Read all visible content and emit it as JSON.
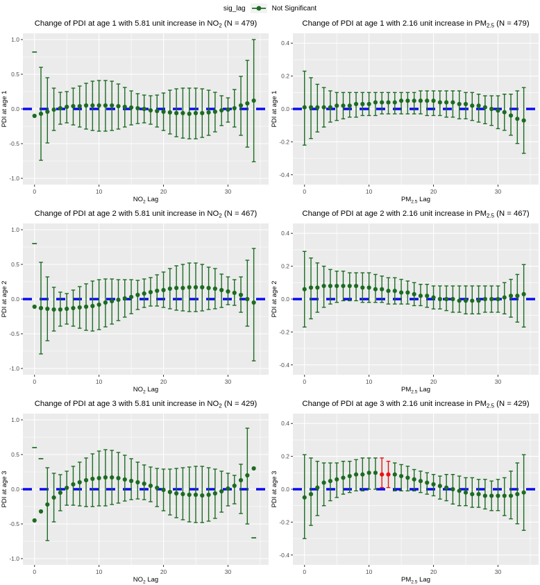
{
  "legend": {
    "title": "sig_lag",
    "items": [
      {
        "label": "Not Significant",
        "color": "#1B6B21"
      }
    ]
  },
  "colors": {
    "not_significant": "#1B6B21",
    "significant": "#ED1111",
    "zero_line": "#0A0AF0",
    "panel_bg": "#EBEBEB",
    "grid_line": "#FFFFFF",
    "axis_text": "#4D4D4D",
    "tick_mark": "#333333",
    "title_text": "#000000"
  },
  "chart_data": [
    {
      "type": "scatter",
      "error_bars": true,
      "title_parts": [
        {
          "t": "Change of PDI at age 1 with 5.81 unit increase in NO"
        },
        {
          "t": "2",
          "sub": true
        },
        {
          "t": " (N = 479)"
        }
      ],
      "xlabel_parts": [
        {
          "t": "NO"
        },
        {
          "t": "2",
          "sub": true
        },
        {
          "t": " Lag"
        }
      ],
      "ylabel": "PDI at age 1",
      "n": 479,
      "xlim": [
        -1.8,
        36.3
      ],
      "ylim": [
        -1.09,
        1.09
      ],
      "xticks": [
        0,
        10,
        20,
        30
      ],
      "yticks": [
        -1.0,
        -0.5,
        0.0,
        0.5,
        1.0
      ],
      "x": [
        0,
        1,
        2,
        3,
        4,
        5,
        6,
        7,
        8,
        9,
        10,
        11,
        12,
        13,
        14,
        15,
        16,
        17,
        18,
        19,
        20,
        21,
        22,
        23,
        24,
        25,
        26,
        27,
        28,
        29,
        30,
        31,
        32,
        33,
        34
      ],
      "est": [
        -0.1,
        -0.07,
        -0.04,
        -0.01,
        0.01,
        0.03,
        0.04,
        0.04,
        0.05,
        0.05,
        0.05,
        0.05,
        0.05,
        0.04,
        0.03,
        0.02,
        0.01,
        0.0,
        -0.02,
        -0.03,
        -0.04,
        -0.05,
        -0.06,
        -0.06,
        -0.07,
        -0.06,
        -0.06,
        -0.05,
        -0.04,
        -0.02,
        -0.01,
        0.01,
        0.05,
        0.08,
        0.12
      ],
      "hi": [
        null,
        0.6,
        0.45,
        0.3,
        0.24,
        0.25,
        0.3,
        0.33,
        0.37,
        0.4,
        0.41,
        0.41,
        0.4,
        0.36,
        0.31,
        0.26,
        0.22,
        0.2,
        0.19,
        0.2,
        0.23,
        0.27,
        0.29,
        0.3,
        0.3,
        0.3,
        0.29,
        0.27,
        0.24,
        0.19,
        0.16,
        0.28,
        0.47,
        0.7,
        1.0
      ],
      "lo": [
        null,
        -0.74,
        -0.49,
        -0.31,
        -0.22,
        -0.2,
        -0.23,
        -0.26,
        -0.29,
        -0.31,
        -0.32,
        -0.32,
        -0.31,
        -0.29,
        -0.26,
        -0.23,
        -0.21,
        -0.2,
        -0.22,
        -0.26,
        -0.31,
        -0.36,
        -0.4,
        -0.42,
        -0.43,
        -0.43,
        -0.41,
        -0.38,
        -0.33,
        -0.24,
        -0.19,
        -0.26,
        -0.38,
        -0.55,
        -0.76
      ],
      "caps": [
        {
          "x": 0,
          "y": 0.82
        }
      ],
      "sig_lags": []
    },
    {
      "type": "scatter",
      "error_bars": true,
      "title_parts": [
        {
          "t": "Change of PDI at age 1 with 2.16 unit increase in PM"
        },
        {
          "t": "2.5",
          "sub": true
        },
        {
          "t": " (N = 479)"
        }
      ],
      "xlabel_parts": [
        {
          "t": "PM"
        },
        {
          "t": "2.5",
          "sub": true
        },
        {
          "t": " Lag"
        }
      ],
      "ylabel": "PDI at age 1",
      "n": 479,
      "xlim": [
        -1.8,
        36.3
      ],
      "ylim": [
        -0.46,
        0.46
      ],
      "xticks": [
        0,
        10,
        20,
        30
      ],
      "yticks": [
        -0.4,
        -0.2,
        0.0,
        0.2,
        0.4
      ],
      "x": [
        0,
        1,
        2,
        3,
        4,
        5,
        6,
        7,
        8,
        9,
        10,
        11,
        12,
        13,
        14,
        15,
        16,
        17,
        18,
        19,
        20,
        21,
        22,
        23,
        24,
        25,
        26,
        27,
        28,
        29,
        30,
        31,
        32,
        33,
        34
      ],
      "est": [
        0.01,
        0.01,
        0.01,
        0.01,
        0.01,
        0.02,
        0.02,
        0.02,
        0.03,
        0.03,
        0.03,
        0.04,
        0.04,
        0.04,
        0.04,
        0.05,
        0.05,
        0.05,
        0.05,
        0.05,
        0.05,
        0.04,
        0.04,
        0.04,
        0.03,
        0.03,
        0.02,
        0.02,
        0.01,
        0.0,
        -0.01,
        -0.02,
        -0.04,
        -0.06,
        -0.07
      ],
      "hi": [
        0.23,
        0.19,
        0.15,
        0.13,
        0.11,
        0.1,
        0.1,
        0.1,
        0.1,
        0.1,
        0.1,
        0.1,
        0.1,
        0.1,
        0.1,
        0.1,
        0.1,
        0.1,
        0.11,
        0.11,
        0.11,
        0.11,
        0.11,
        0.11,
        0.11,
        0.1,
        0.1,
        0.09,
        0.08,
        0.08,
        0.08,
        0.09,
        0.09,
        0.11,
        0.13
      ],
      "lo": [
        -0.22,
        -0.18,
        -0.14,
        -0.11,
        -0.08,
        -0.07,
        -0.06,
        -0.05,
        -0.05,
        -0.04,
        -0.04,
        -0.04,
        -0.03,
        -0.03,
        -0.03,
        -0.03,
        -0.03,
        -0.03,
        -0.03,
        -0.04,
        -0.04,
        -0.04,
        -0.05,
        -0.05,
        -0.06,
        -0.06,
        -0.07,
        -0.08,
        -0.09,
        -0.1,
        -0.12,
        -0.13,
        -0.16,
        -0.21,
        -0.27
      ],
      "caps": [],
      "sig_lags": []
    },
    {
      "type": "scatter",
      "error_bars": true,
      "title_parts": [
        {
          "t": "Change of PDI at age 2 with 5.81 unit increase in NO"
        },
        {
          "t": "2",
          "sub": true
        },
        {
          "t": " (N = 467)"
        }
      ],
      "xlabel_parts": [
        {
          "t": "NO"
        },
        {
          "t": "2",
          "sub": true
        },
        {
          "t": " Lag"
        }
      ],
      "ylabel": "PDI at age 2",
      "n": 467,
      "xlim": [
        -1.8,
        36.3
      ],
      "ylim": [
        -1.09,
        1.09
      ],
      "xticks": [
        0,
        10,
        20,
        30
      ],
      "yticks": [
        -1.0,
        -0.5,
        0.0,
        0.5,
        1.0
      ],
      "x": [
        0,
        1,
        2,
        3,
        4,
        5,
        6,
        7,
        8,
        9,
        10,
        11,
        12,
        13,
        14,
        15,
        16,
        17,
        18,
        19,
        20,
        21,
        22,
        23,
        24,
        25,
        26,
        27,
        28,
        29,
        30,
        31,
        32,
        33,
        34
      ],
      "est": [
        -0.11,
        -0.13,
        -0.14,
        -0.15,
        -0.15,
        -0.14,
        -0.13,
        -0.12,
        -0.11,
        -0.1,
        -0.08,
        -0.05,
        -0.03,
        -0.01,
        0.01,
        0.03,
        0.06,
        0.08,
        0.1,
        0.12,
        0.13,
        0.15,
        0.16,
        0.16,
        0.17,
        0.17,
        0.17,
        0.16,
        0.15,
        0.13,
        0.11,
        0.09,
        0.06,
        0.0,
        -0.05
      ],
      "hi": [
        null,
        0.53,
        0.32,
        0.17,
        0.1,
        0.08,
        0.13,
        0.18,
        0.22,
        0.26,
        0.28,
        0.29,
        0.29,
        0.28,
        0.28,
        0.28,
        0.27,
        0.29,
        0.31,
        0.35,
        0.39,
        0.44,
        0.48,
        0.5,
        0.52,
        0.52,
        0.5,
        0.46,
        0.44,
        0.36,
        0.32,
        0.28,
        0.32,
        0.56,
        0.73
      ],
      "lo": [
        null,
        -0.79,
        -0.6,
        -0.46,
        -0.39,
        -0.36,
        -0.39,
        -0.42,
        -0.45,
        -0.46,
        -0.44,
        -0.4,
        -0.36,
        -0.31,
        -0.26,
        -0.21,
        -0.15,
        -0.12,
        -0.1,
        -0.1,
        -0.12,
        -0.14,
        -0.16,
        -0.17,
        -0.18,
        -0.18,
        -0.17,
        -0.15,
        -0.14,
        -0.12,
        -0.08,
        -0.09,
        -0.19,
        -0.39,
        -0.89
      ],
      "caps": [
        {
          "x": 0,
          "y": 0.8
        }
      ],
      "sig_lags": []
    },
    {
      "type": "scatter",
      "error_bars": true,
      "title_parts": [
        {
          "t": "Change of PDI at age 2 with 2.16 unit increase in PM"
        },
        {
          "t": "2.5",
          "sub": true
        },
        {
          "t": " (N = 467)"
        }
      ],
      "xlabel_parts": [
        {
          "t": "PM"
        },
        {
          "t": "2.5",
          "sub": true
        },
        {
          "t": " Lag"
        }
      ],
      "ylabel": "PDI at age 2",
      "n": 467,
      "xlim": [
        -1.8,
        36.3
      ],
      "ylim": [
        -0.46,
        0.46
      ],
      "xticks": [
        0,
        10,
        20,
        30
      ],
      "yticks": [
        -0.4,
        -0.2,
        0.0,
        0.2,
        0.4
      ],
      "x": [
        0,
        1,
        2,
        3,
        4,
        5,
        6,
        7,
        8,
        9,
        10,
        11,
        12,
        13,
        14,
        15,
        16,
        17,
        18,
        19,
        20,
        21,
        22,
        23,
        24,
        25,
        26,
        27,
        28,
        29,
        30,
        31,
        32,
        33,
        34
      ],
      "est": [
        0.06,
        0.07,
        0.07,
        0.08,
        0.08,
        0.08,
        0.08,
        0.08,
        0.08,
        0.07,
        0.07,
        0.06,
        0.06,
        0.05,
        0.05,
        0.04,
        0.04,
        0.03,
        0.02,
        0.02,
        0.01,
        0.0,
        0.0,
        0.0,
        -0.01,
        -0.01,
        -0.01,
        -0.01,
        0.0,
        0.0,
        0.0,
        0.01,
        0.02,
        0.02,
        0.03
      ],
      "hi": [
        0.29,
        0.25,
        0.22,
        0.2,
        0.18,
        0.17,
        0.17,
        0.16,
        0.16,
        0.16,
        0.16,
        0.15,
        0.14,
        0.13,
        0.13,
        0.12,
        0.11,
        0.1,
        0.09,
        0.09,
        0.08,
        0.08,
        0.08,
        0.08,
        0.08,
        0.08,
        0.08,
        0.08,
        0.08,
        0.08,
        0.08,
        0.1,
        0.12,
        0.15,
        0.21
      ],
      "lo": [
        -0.17,
        -0.12,
        -0.08,
        -0.05,
        -0.03,
        -0.02,
        -0.01,
        -0.01,
        -0.01,
        -0.02,
        -0.02,
        -0.02,
        -0.02,
        -0.03,
        -0.03,
        -0.03,
        -0.03,
        -0.04,
        -0.04,
        -0.05,
        -0.06,
        -0.06,
        -0.07,
        -0.08,
        -0.08,
        -0.09,
        -0.09,
        -0.09,
        -0.08,
        -0.08,
        -0.08,
        -0.09,
        -0.11,
        -0.14,
        -0.17
      ],
      "caps": [],
      "sig_lags": []
    },
    {
      "type": "scatter",
      "error_bars": true,
      "title_parts": [
        {
          "t": "Change of PDI at age 3 with 5.81 unit increase in NO"
        },
        {
          "t": "2",
          "sub": true
        },
        {
          "t": " (N = 429)"
        }
      ],
      "xlabel_parts": [
        {
          "t": "NO"
        },
        {
          "t": "2",
          "sub": true
        },
        {
          "t": " Lag"
        }
      ],
      "ylabel": "PDI at age 3",
      "n": 429,
      "xlim": [
        -1.8,
        36.3
      ],
      "ylim": [
        -1.09,
        1.09
      ],
      "xticks": [
        0,
        10,
        20,
        30
      ],
      "yticks": [
        -1.0,
        -0.5,
        0.0,
        0.5,
        1.0
      ],
      "x": [
        0,
        1,
        2,
        3,
        4,
        5,
        6,
        7,
        8,
        9,
        10,
        11,
        12,
        13,
        14,
        15,
        16,
        17,
        18,
        19,
        20,
        21,
        22,
        23,
        24,
        25,
        26,
        27,
        28,
        29,
        30,
        31,
        32,
        33,
        34
      ],
      "est": [
        -0.45,
        -0.32,
        -0.22,
        -0.12,
        -0.05,
        0.02,
        0.07,
        0.1,
        0.13,
        0.15,
        0.16,
        0.17,
        0.17,
        0.16,
        0.14,
        0.12,
        0.1,
        0.08,
        0.05,
        0.02,
        -0.01,
        -0.04,
        -0.06,
        -0.07,
        -0.08,
        -0.08,
        -0.09,
        -0.08,
        -0.06,
        -0.03,
        0.01,
        0.05,
        0.13,
        0.2,
        0.3
      ],
      "hi": [
        null,
        null,
        0.31,
        0.23,
        0.21,
        0.26,
        0.33,
        0.39,
        0.45,
        0.51,
        0.55,
        0.57,
        0.56,
        0.53,
        0.49,
        0.44,
        0.39,
        0.35,
        0.32,
        0.3,
        0.29,
        0.29,
        0.3,
        0.31,
        0.32,
        0.33,
        0.33,
        0.31,
        0.29,
        0.26,
        0.23,
        0.2,
        0.36,
        0.88,
        null
      ],
      "lo": [
        null,
        null,
        -0.74,
        -0.47,
        -0.31,
        -0.23,
        -0.23,
        -0.24,
        -0.25,
        -0.25,
        -0.24,
        -0.24,
        -0.22,
        -0.2,
        -0.17,
        -0.15,
        -0.14,
        -0.15,
        -0.18,
        -0.25,
        -0.31,
        -0.37,
        -0.41,
        -0.44,
        -0.47,
        -0.48,
        -0.48,
        -0.46,
        -0.42,
        -0.33,
        -0.24,
        -0.21,
        -0.35,
        -0.5,
        null
      ],
      "caps": [
        {
          "x": 0,
          "y": 0.6
        },
        {
          "x": 1,
          "y": 0.44
        },
        {
          "x": 34,
          "y": -0.7
        }
      ],
      "sig_lags": []
    },
    {
      "type": "scatter",
      "error_bars": true,
      "title_parts": [
        {
          "t": "Change of PDI at age 3 with 2.16 unit increase in PM"
        },
        {
          "t": "2.5",
          "sub": true
        },
        {
          "t": " (N = 429)"
        }
      ],
      "xlabel_parts": [
        {
          "t": "PM"
        },
        {
          "t": "2.5",
          "sub": true
        },
        {
          "t": " Lag"
        }
      ],
      "ylabel": "PDI at age 3",
      "n": 429,
      "xlim": [
        -1.8,
        36.3
      ],
      "ylim": [
        -0.46,
        0.46
      ],
      "xticks": [
        0,
        10,
        20,
        30
      ],
      "yticks": [
        -0.4,
        -0.2,
        0.0,
        0.2,
        0.4
      ],
      "x": [
        0,
        1,
        2,
        3,
        4,
        5,
        6,
        7,
        8,
        9,
        10,
        11,
        12,
        13,
        14,
        15,
        16,
        17,
        18,
        19,
        20,
        21,
        22,
        23,
        24,
        25,
        26,
        27,
        28,
        29,
        30,
        31,
        32,
        33,
        34
      ],
      "est": [
        -0.05,
        -0.03,
        0.01,
        0.04,
        0.05,
        0.06,
        0.07,
        0.08,
        0.09,
        0.09,
        0.1,
        0.1,
        0.09,
        0.09,
        0.09,
        0.08,
        0.07,
        0.06,
        0.05,
        0.04,
        0.03,
        0.02,
        0.01,
        0.0,
        -0.01,
        -0.02,
        -0.03,
        -0.03,
        -0.04,
        -0.04,
        -0.04,
        -0.04,
        -0.04,
        -0.03,
        -0.02
      ],
      "hi": [
        0.21,
        0.19,
        0.17,
        0.16,
        0.16,
        0.16,
        0.17,
        0.17,
        0.18,
        0.19,
        0.19,
        0.19,
        0.19,
        0.17,
        0.16,
        0.15,
        0.14,
        0.12,
        0.11,
        0.1,
        0.09,
        0.08,
        0.09,
        0.09,
        0.08,
        0.07,
        0.07,
        0.06,
        0.06,
        0.05,
        0.06,
        0.07,
        0.11,
        0.16,
        0.21
      ],
      "lo": [
        -0.3,
        -0.22,
        -0.16,
        -0.1,
        -0.07,
        -0.05,
        -0.03,
        -0.02,
        -0.01,
        -0.01,
        0.0,
        0.0,
        0.01,
        0.01,
        -0.01,
        -0.01,
        -0.01,
        -0.01,
        -0.02,
        -0.03,
        -0.04,
        -0.06,
        -0.07,
        -0.09,
        -0.1,
        -0.1,
        -0.11,
        -0.11,
        -0.12,
        -0.13,
        -0.13,
        -0.16,
        -0.18,
        -0.21,
        -0.25
      ],
      "caps": [],
      "sig_lags": [
        12,
        13
      ]
    }
  ]
}
